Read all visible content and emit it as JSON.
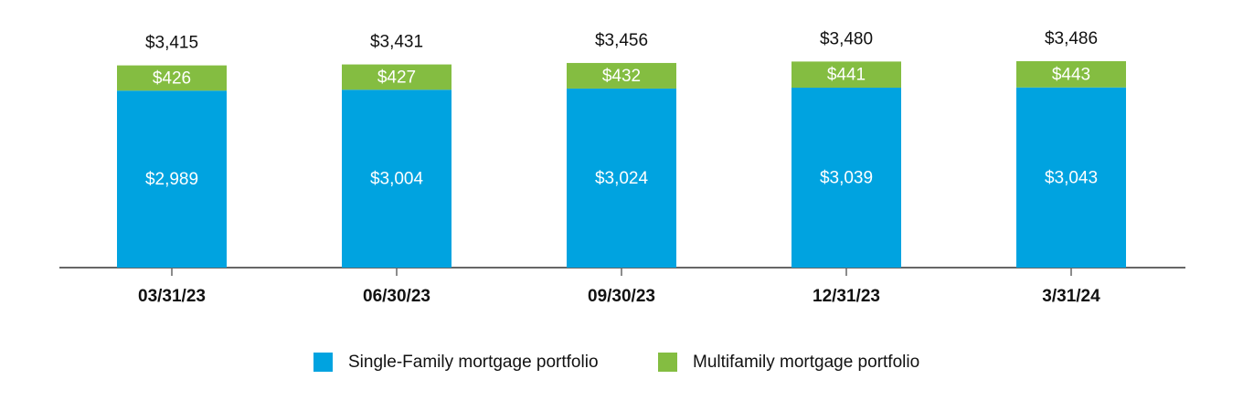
{
  "chart_data": {
    "type": "stacked-bar",
    "categories": [
      "03/31/23",
      "06/30/23",
      "09/30/23",
      "12/31/23",
      "3/31/24"
    ],
    "series": [
      {
        "name": "Single-Family mortgage portfolio",
        "color": "#00a3e0",
        "values": [
          2989,
          3004,
          3024,
          3039,
          3043
        ],
        "value_labels": [
          "$2,989",
          "$3,004",
          "$3,024",
          "$3,039",
          "$3,043"
        ]
      },
      {
        "name": "Multifamily mortgage portfolio",
        "color": "#84bd41",
        "values": [
          426,
          427,
          432,
          441,
          443
        ],
        "value_labels": [
          "$426",
          "$427",
          "$432",
          "$441",
          "$443"
        ]
      }
    ],
    "totals": [
      3415,
      3431,
      3456,
      3480,
      3486
    ],
    "total_labels": [
      "$3,415",
      "$3,431",
      "$3,456",
      "$3,480",
      "$3,486"
    ]
  }
}
